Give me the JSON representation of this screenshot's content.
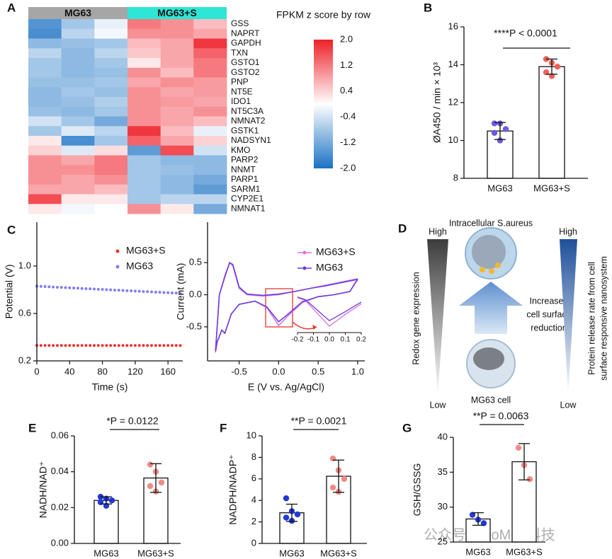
{
  "chart_data": [
    {
      "type": "heatmap",
      "panel_label": "A",
      "title": "FPKM z score by row",
      "groups": [
        {
          "name": "MG63",
          "color": "#a6a6a6"
        },
        {
          "name": "MG63+S",
          "color": "#2ee6d6"
        }
      ],
      "rows": [
        "GSS",
        "NAPRT",
        "GAPDH",
        "TXN",
        "GSTO1",
        "GSTO2",
        "PNP",
        "NT5E",
        "IDO1",
        "NT5C3A",
        "NMNAT2",
        "GSTK1",
        "NADSYN1",
        "KMO",
        "PARP2",
        "NNMT",
        "PARP1",
        "SARM1",
        "CYP2E1",
        "NMNAT1"
      ],
      "values": [
        [
          -1.5,
          -0.8,
          -0.2,
          1.2,
          1.0,
          0.6
        ],
        [
          -1.6,
          -0.6,
          -0.1,
          1.0,
          1.0,
          0.8
        ],
        [
          -1.0,
          -0.9,
          -0.8,
          0.6,
          0.8,
          1.8
        ],
        [
          -0.6,
          -1.0,
          -0.6,
          0.5,
          0.8,
          1.4
        ],
        [
          -0.8,
          -1.0,
          -0.8,
          0.2,
          0.8,
          1.2
        ],
        [
          -0.8,
          -1.0,
          -0.9,
          1.0,
          0.6,
          1.2
        ],
        [
          -0.9,
          -0.9,
          -0.8,
          0.8,
          1.0,
          0.9
        ],
        [
          -1.0,
          -0.8,
          -0.9,
          1.0,
          0.8,
          0.9
        ],
        [
          -1.0,
          -0.9,
          -0.7,
          1.0,
          0.9,
          0.8
        ],
        [
          -0.9,
          -1.0,
          -0.8,
          1.0,
          0.8,
          1.0
        ],
        [
          -0.4,
          -0.8,
          -1.2,
          1.0,
          0.8,
          0.6
        ],
        [
          -0.8,
          -0.3,
          -0.6,
          1.8,
          0.6,
          -0.2
        ],
        [
          0.2,
          -1.6,
          -0.8,
          1.4,
          0.8,
          0.4
        ],
        [
          0.4,
          -0.3,
          0.3,
          -1.4,
          1.6,
          -0.4
        ],
        [
          1.0,
          0.8,
          1.2,
          -0.8,
          -1.0,
          -1.0
        ],
        [
          1.0,
          1.0,
          1.2,
          -0.8,
          -0.9,
          -1.0
        ],
        [
          1.0,
          0.8,
          1.0,
          -0.8,
          -1.0,
          -1.2
        ],
        [
          0.8,
          0.8,
          0.6,
          -0.8,
          -1.0,
          -1.4
        ],
        [
          1.6,
          0.2,
          0.2,
          -0.8,
          -0.6,
          -0.6
        ],
        [
          0.2,
          -0.1,
          0.0,
          1.0,
          0.2,
          -1.2
        ]
      ],
      "colorscale": [
        "#1a72c4",
        "#ffffff",
        "#ee2028"
      ],
      "zlim": [
        -2,
        2
      ],
      "zticks": [
        {
          "value": 2,
          "label": "2.0"
        },
        1.2,
        0.4,
        -0.4,
        -1.2,
        {
          "value": -2,
          "label": "-2.0"
        }
      ]
    },
    {
      "type": "bar",
      "panel_label": "B",
      "categories": [
        "MG63",
        "MG63+S"
      ],
      "values": [
        10.5,
        13.9
      ],
      "errors": [
        0.45,
        0.4
      ],
      "points": [
        [
          10.9,
          10.9,
          10.6,
          10.4,
          10.0
        ],
        [
          14.3,
          14.1,
          13.9,
          13.6,
          13.4
        ]
      ],
      "point_colors": [
        "#6a5be0",
        "#f0605a"
      ],
      "ylim": [
        8,
        16
      ],
      "yticks": [
        8,
        10,
        12,
        14,
        16
      ],
      "ylabel": "ØA450 / min × 10³",
      "annotation": "****P < 0.0001"
    },
    {
      "type": "scatter",
      "panel_label": "C",
      "xlabel": "Time (s)",
      "ylabel": "Potential (V)",
      "x": [
        0,
        5,
        10,
        15,
        20,
        25,
        30,
        35,
        40,
        45,
        50,
        55,
        60,
        65,
        70,
        75,
        80,
        85,
        90,
        95,
        100,
        105,
        110,
        115,
        120,
        125,
        130,
        135,
        140,
        145,
        150,
        155,
        160,
        165,
        170,
        175
      ],
      "series": [
        {
          "name": "MG63+S",
          "color": "#e8352c",
          "values": [
            0.33,
            0.33,
            0.33,
            0.33,
            0.33,
            0.33,
            0.33,
            0.33,
            0.33,
            0.33,
            0.33,
            0.33,
            0.33,
            0.33,
            0.33,
            0.33,
            0.33,
            0.33,
            0.33,
            0.33,
            0.33,
            0.33,
            0.33,
            0.33,
            0.33,
            0.33,
            0.33,
            0.33,
            0.33,
            0.33,
            0.33,
            0.33,
            0.33,
            0.33,
            0.33,
            0.33
          ]
        },
        {
          "name": "MG63",
          "color": "#7f7ff0",
          "values": [
            0.83,
            0.828,
            0.827,
            0.825,
            0.823,
            0.821,
            0.82,
            0.818,
            0.816,
            0.815,
            0.813,
            0.811,
            0.809,
            0.808,
            0.806,
            0.804,
            0.803,
            0.801,
            0.799,
            0.797,
            0.796,
            0.794,
            0.792,
            0.791,
            0.789,
            0.787,
            0.785,
            0.784,
            0.782,
            0.78,
            0.779,
            0.777,
            0.775,
            0.773,
            0.772,
            0.77
          ]
        }
      ],
      "xlim": [
        0,
        178
      ],
      "ylim": [
        0.2,
        1.37
      ],
      "xticks": [
        0,
        40,
        80,
        120,
        160
      ],
      "yticks": [
        0.2,
        0.6,
        {
          "value": 1,
          "label": "1.0"
        }
      ]
    },
    {
      "type": "line",
      "xlabel": "E (V vs. Ag/AgCl)",
      "ylabel": "Current (mA)",
      "x": [
        1.0,
        0.8,
        0.6,
        0.4,
        0.2,
        0.0,
        -0.2,
        -0.4,
        -0.5,
        -0.58,
        -0.62,
        -0.68,
        -0.75,
        -0.8,
        -0.78,
        -0.72,
        -0.68,
        -0.6,
        -0.5,
        -0.3,
        -0.15,
        0.0,
        0.1,
        0.3,
        0.5,
        0.7,
        0.9,
        1.0
      ],
      "series": [
        {
          "name": "MG63+S",
          "color": "#e070e0",
          "values": [
            0.25,
            0.2,
            0.15,
            0.1,
            0.05,
            0.0,
            -0.02,
            0.0,
            0.1,
            0.45,
            0.5,
            0.3,
            0.0,
            -0.9,
            -0.75,
            -0.55,
            -0.6,
            -0.3,
            -0.15,
            -0.1,
            -0.2,
            -0.48,
            -0.35,
            -0.12,
            -0.03,
            0.0,
            0.05,
            0.25
          ]
        },
        {
          "name": "MG63",
          "color": "#6a3de0",
          "values": [
            0.24,
            0.19,
            0.14,
            0.1,
            0.05,
            0.01,
            -0.01,
            0.01,
            0.12,
            0.47,
            0.5,
            0.28,
            0.0,
            -0.88,
            -0.74,
            -0.55,
            -0.6,
            -0.3,
            -0.15,
            -0.1,
            -0.19,
            -0.42,
            -0.32,
            -0.11,
            -0.03,
            0.0,
            0.05,
            0.24
          ]
        }
      ],
      "xlim": [
        -0.9,
        1.09
      ],
      "ylim": [
        -1.03,
        1.13
      ],
      "xticks": [
        -0.5,
        {
          "value": 0,
          "label": "0.0"
        },
        0.5,
        {
          "value": 1,
          "label": "1.0"
        }
      ],
      "yticks": [
        -0.5,
        {
          "value": 0,
          "label": "0.0"
        },
        0.5
      ],
      "inset_xlim": [
        -0.2,
        0.2
      ],
      "inset_ylim": [
        -0.55,
        -0.1
      ],
      "inset_xticks": [
        -0.2,
        -0.1,
        {
          "value": 0,
          "label": "0.0"
        },
        0.1,
        0.2
      ]
    },
    {
      "type": "bar",
      "panel_label": "E",
      "categories": [
        "MG63",
        "MG63+S"
      ],
      "values": [
        0.024,
        0.0365
      ],
      "errors": [
        0.002,
        0.008
      ],
      "points": [
        [
          0.026,
          0.025,
          0.024,
          0.023,
          0.021
        ],
        [
          0.044,
          0.04,
          0.034,
          0.032,
          0.029
        ]
      ],
      "point_colors": [
        "#2238d8",
        "#f08a84"
      ],
      "ylim": [
        0,
        0.06
      ],
      "yticks": [
        {
          "value": 0,
          "label": "0.00"
        },
        0.02,
        0.04,
        0.06
      ],
      "ylabel": "NADH/NAD⁺",
      "annotation": "*P = 0.0122"
    },
    {
      "type": "bar",
      "panel_label": "F",
      "categories": [
        "MG63",
        "MG63+S"
      ],
      "values": [
        2.85,
        6.25
      ],
      "errors": [
        0.8,
        1.5
      ],
      "points": [
        [
          4.2,
          3.0,
          2.7,
          2.4,
          2.1
        ],
        [
          7.9,
          6.8,
          6.0,
          5.2,
          4.8
        ]
      ],
      "point_colors": [
        "#2238d8",
        "#f08a84"
      ],
      "ylim": [
        0,
        10
      ],
      "yticks": [
        0,
        2,
        4,
        6,
        8,
        10
      ],
      "ylabel": "NADPH/NADP⁺",
      "annotation": "**P = 0.0021"
    },
    {
      "type": "bar",
      "panel_label": "G",
      "categories": [
        "MG63",
        "MG63+S"
      ],
      "values": [
        28.3,
        36.5
      ],
      "errors": [
        0.9,
        2.6
      ],
      "points": [
        [
          28.9,
          28.2,
          27.7
        ],
        [
          38.5,
          36.0,
          34.0
        ]
      ],
      "point_colors": [
        "#2238d8",
        "#f08a84"
      ],
      "ylim": [
        25,
        40
      ],
      "yticks": [
        25,
        30,
        35,
        40
      ],
      "ylabel": "GSH/GSSG",
      "annotation": "**P = 0.0063"
    }
  ],
  "diagram": {
    "panel_label": "D",
    "left_high": "High",
    "left_low": "Low",
    "left_label": "Redox  gene expression",
    "top_label": "Intracellular S.aureus",
    "middle_label": [
      "Increased",
      "cell surface",
      "reduction"
    ],
    "bottom_label": "MG63 cell",
    "right_high": "High",
    "right_low": "Low",
    "right_label": [
      "Protein release rate from cell",
      "surface responsive nanosystem"
    ]
  },
  "watermark": "公众号 · BioMed科技"
}
